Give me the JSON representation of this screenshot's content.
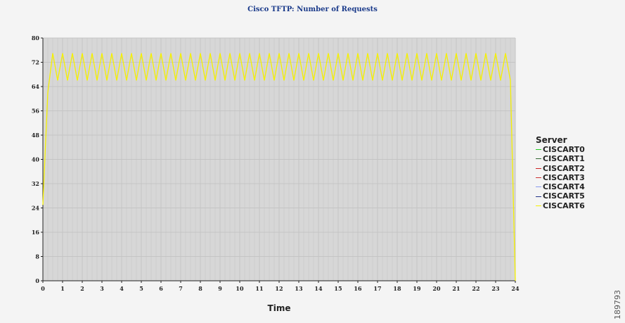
{
  "chart_data": {
    "type": "line",
    "title": "Cisco TFTP: Number of Requests",
    "xlabel": "Time",
    "ylabel": "",
    "xlim": [
      0,
      24
    ],
    "ylim": [
      0,
      80
    ],
    "x_ticks": [
      "0",
      "1",
      "2",
      "3",
      "4",
      "5",
      "6",
      "7",
      "8",
      "9",
      "10",
      "11",
      "12",
      "13",
      "14",
      "15",
      "16",
      "17",
      "18",
      "19",
      "20",
      "21",
      "22",
      "23",
      "24"
    ],
    "y_ticks": [
      "0",
      "8",
      "16",
      "24",
      "32",
      "40",
      "48",
      "56",
      "64",
      "72",
      "80"
    ],
    "grid": true,
    "legend": {
      "title": "Server",
      "placement": "right",
      "entries": [
        {
          "name": "CISCART0",
          "color": "#22cc22"
        },
        {
          "name": "CISCART1",
          "color": "#336633"
        },
        {
          "name": "CISCART2",
          "color": "#cc2222"
        },
        {
          "name": "CISCART3",
          "color": "#cc3333"
        },
        {
          "name": "CISCART4",
          "color": "#8899ee"
        },
        {
          "name": "CISCART5",
          "color": "#223388"
        },
        {
          "name": "CISCART6",
          "color": "#f5f000"
        }
      ]
    },
    "series": [
      {
        "name": "CISCART6",
        "color": "#f5f000",
        "x": [
          0,
          0.1,
          0.25,
          0.5,
          0.75,
          1.0,
          1.25,
          1.5,
          1.75,
          2.0,
          2.25,
          2.5,
          2.75,
          3.0,
          3.25,
          3.5,
          3.75,
          4.0,
          4.25,
          4.5,
          4.75,
          5.0,
          5.25,
          5.5,
          5.75,
          6.0,
          6.25,
          6.5,
          6.75,
          7.0,
          7.25,
          7.5,
          7.75,
          8.0,
          8.25,
          8.5,
          8.75,
          9.0,
          9.25,
          9.5,
          9.75,
          10.0,
          10.25,
          10.5,
          10.75,
          11.0,
          11.25,
          11.5,
          11.75,
          12.0,
          12.25,
          12.5,
          12.75,
          13.0,
          13.25,
          13.5,
          13.75,
          14.0,
          14.25,
          14.5,
          14.75,
          15.0,
          15.25,
          15.5,
          15.75,
          16.0,
          16.25,
          16.5,
          16.75,
          17.0,
          17.25,
          17.5,
          17.75,
          18.0,
          18.25,
          18.5,
          18.75,
          19.0,
          19.25,
          19.5,
          19.75,
          20.0,
          20.25,
          20.5,
          20.75,
          21.0,
          21.25,
          21.5,
          21.75,
          22.0,
          22.25,
          22.5,
          22.75,
          23.0,
          23.25,
          23.5,
          23.75,
          24.0
        ],
        "values": [
          25,
          40,
          62,
          75,
          66,
          75,
          66,
          75,
          66,
          75,
          66,
          75,
          66,
          75,
          66,
          75,
          66,
          75,
          66,
          75,
          66,
          75,
          66,
          75,
          66,
          75,
          66,
          75,
          66,
          75,
          66,
          75,
          66,
          75,
          66,
          75,
          66,
          75,
          66,
          75,
          66,
          75,
          66,
          75,
          66,
          75,
          66,
          75,
          66,
          75,
          66,
          75,
          66,
          75,
          66,
          75,
          66,
          75,
          66,
          75,
          66,
          75,
          66,
          75,
          66,
          75,
          66,
          75,
          66,
          75,
          66,
          75,
          66,
          75,
          66,
          75,
          66,
          75,
          66,
          75,
          66,
          75,
          66,
          75,
          66,
          75,
          66,
          75,
          66,
          75,
          66,
          75,
          66,
          75,
          66,
          75,
          66,
          0
        ]
      }
    ]
  },
  "figure_id": "189793"
}
